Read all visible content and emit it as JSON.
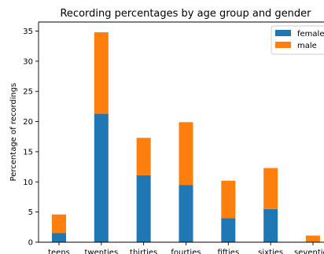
{
  "chart_data": {
    "type": "bar",
    "stacked": true,
    "title": "Recording percentages by age group and gender",
    "xlabel": "",
    "ylabel": "Percentage of recordings",
    "categories": [
      "teens",
      "twenties",
      "thirties",
      "fourties",
      "fifties",
      "sixties",
      "seventies"
    ],
    "series": [
      {
        "name": "female",
        "color": "#1f77b4",
        "values": [
          1.5,
          21.3,
          11.1,
          9.5,
          4.0,
          5.5,
          0.0
        ]
      },
      {
        "name": "male",
        "color": "#ff7f0e",
        "values": [
          3.1,
          13.5,
          6.2,
          10.4,
          6.2,
          6.8,
          1.1
        ]
      }
    ],
    "ylim": [
      0,
      36.5
    ],
    "yticks": [
      0,
      5,
      10,
      15,
      20,
      25,
      30,
      35
    ],
    "grid": false,
    "legend_position": "top-right"
  }
}
